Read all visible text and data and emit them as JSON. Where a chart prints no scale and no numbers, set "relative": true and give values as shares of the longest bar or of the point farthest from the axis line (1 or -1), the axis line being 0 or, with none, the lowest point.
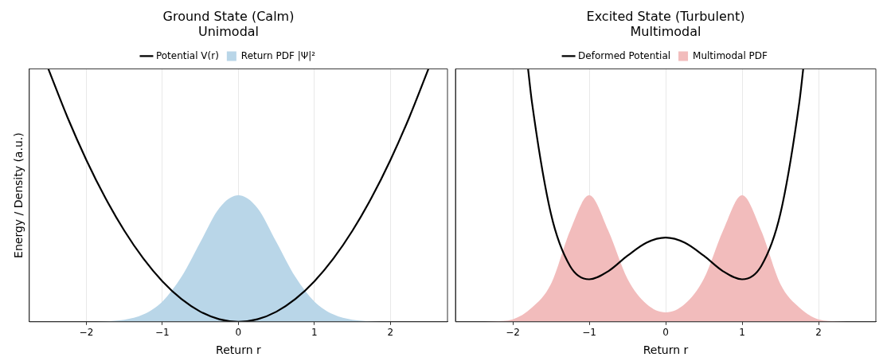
{
  "chart_data": [
    {
      "type": "area",
      "title": "Ground State (Calm)",
      "subtitle": "Unimodal",
      "xlabel": "Return r",
      "ylabel": "Energy / Density (a.u.)",
      "relative": true,
      "tick_labels": "x",
      "grid": "x",
      "legend": "top",
      "x": [
        -2.75,
        -2.5,
        -2.25,
        -2,
        -1.75,
        -1.5,
        -1.25,
        -1,
        -0.75,
        -0.5,
        -0.25,
        0,
        0.25,
        0.5,
        0.75,
        1,
        1.25,
        1.5,
        1.75,
        2,
        2.25,
        2.5,
        2.75
      ],
      "xlim": [
        -2.75,
        2.75
      ],
      "xticks": [
        -2,
        -1,
        0,
        1,
        2
      ],
      "series": [
        {
          "name": "Potential V(r)",
          "type": "line",
          "color": "#000000",
          "x": [
            -2.5,
            -2.25,
            -2,
            -1.75,
            -1.5,
            -1.25,
            -1,
            -0.75,
            -0.5,
            -0.25,
            0,
            0.25,
            0.5,
            0.75,
            1,
            1.25,
            1.5,
            1.75,
            2,
            2.25,
            2.5
          ],
          "values": [
            1.0,
            0.81,
            0.64,
            0.49,
            0.36,
            0.25,
            0.16,
            0.09,
            0.04,
            0.01,
            0,
            0.01,
            0.04,
            0.09,
            0.16,
            0.25,
            0.36,
            0.49,
            0.64,
            0.81,
            1.0
          ]
        },
        {
          "name": "Return PDF |Ψ|²",
          "color": "#b9d6e8",
          "values": [
            0,
            0,
            0,
            0,
            0.002,
            0.008,
            0.029,
            0.08,
            0.177,
            0.315,
            0.45,
            0.5,
            0.45,
            0.315,
            0.177,
            0.08,
            0.029,
            0.008,
            0.002,
            0,
            0,
            0,
            0
          ]
        }
      ]
    },
    {
      "type": "area",
      "title": "Excited State (Turbulent)",
      "subtitle": "Multimodal",
      "xlabel": "Return r",
      "relative": true,
      "tick_labels": "x",
      "grid": "x",
      "legend": "top",
      "x": [
        -2.75,
        -2.5,
        -2.25,
        -2,
        -1.75,
        -1.5,
        -1.25,
        -1,
        -0.75,
        -0.5,
        -0.25,
        0,
        0.25,
        0.5,
        0.75,
        1,
        1.25,
        1.5,
        1.75,
        2,
        2.25,
        2.5,
        2.75
      ],
      "xlim": [
        -2.75,
        2.75
      ],
      "xticks": [
        -2,
        -1,
        0,
        1,
        2
      ],
      "series": [
        {
          "name": "Deformed Potential",
          "type": "line",
          "color": "#000000",
          "x": [
            -1.8,
            -1.75,
            -1.5,
            -1.25,
            -1,
            -0.75,
            -0.5,
            -0.25,
            0,
            0.25,
            0.5,
            0.75,
            1,
            1.25,
            1.5,
            1.75,
            1.8
          ],
          "values": [
            1.0,
            0.87,
            0.426,
            0.22,
            0.168,
            0.2,
            0.261,
            0.313,
            0.333,
            0.313,
            0.261,
            0.2,
            0.168,
            0.22,
            0.426,
            0.87,
            1.0
          ]
        },
        {
          "name": "Multimodal PDF",
          "color": "#f2bcbc",
          "values": [
            0,
            0,
            0.002,
            0.01,
            0.056,
            0.15,
            0.36,
            0.5,
            0.36,
            0.17,
            0.07,
            0.037,
            0.07,
            0.17,
            0.36,
            0.5,
            0.36,
            0.15,
            0.056,
            0.01,
            0.002,
            0,
            0
          ]
        }
      ]
    }
  ]
}
